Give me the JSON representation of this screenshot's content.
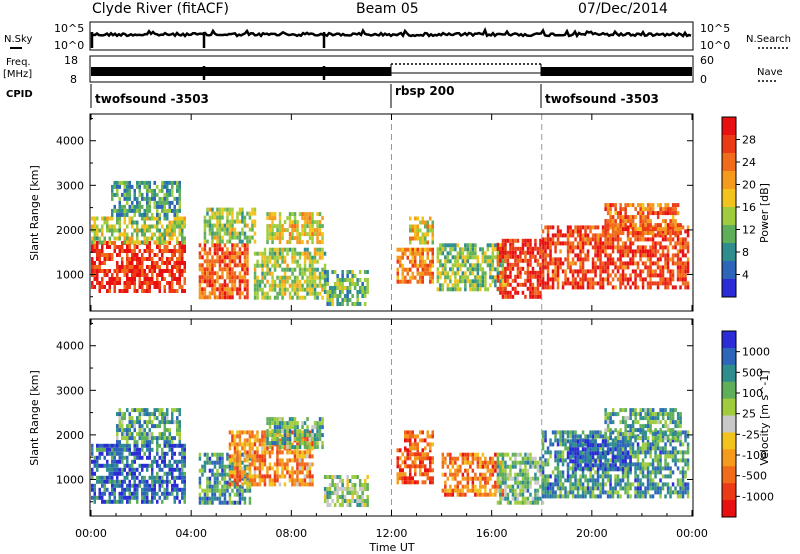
{
  "header": {
    "station": "Clyde River (fitACF)",
    "beam": "Beam 05",
    "date": "07/Dec/2014"
  },
  "top_panel": {
    "nsky_label": "N.Sky",
    "nsearch_label": "N.Search",
    "freq_label": "Freq.",
    "freq_unit": "[MHz]",
    "nave_label": "Nave",
    "cpid_label": "CPID",
    "left_ticks_noise": [
      "10^5",
      "10^0"
    ],
    "right_ticks_noise": [
      "10^5",
      "10^0"
    ],
    "left_ticks_freq": [
      "18",
      "8"
    ],
    "right_ticks_freq": [
      "60",
      "0"
    ]
  },
  "cpid_segments": [
    {
      "start": 0,
      "end": 12,
      "label": "twofsound -3503"
    },
    {
      "start": 12,
      "end": 18,
      "label": "rbsp 200"
    },
    {
      "start": 18,
      "end": 24,
      "label": "twofsound -3503"
    }
  ],
  "chart_data": [
    {
      "type": "heatmap",
      "quantity": "Power",
      "ylabel": "Slant Range [km]",
      "xlabel": "Time UT",
      "xlim": [
        0,
        24
      ],
      "ylim": [
        180,
        4600
      ],
      "yticks": [
        1000,
        2000,
        3000,
        4000
      ],
      "colorbar_label": "Power [dB]",
      "colorbar_ticks": [
        "28",
        "24",
        "20",
        "16",
        "12",
        "8",
        "4"
      ],
      "colorscale": [
        "#2b2bd8",
        "#2d66b8",
        "#2f8d8d",
        "#5fae5a",
        "#9fcc3c",
        "#f2c31c",
        "#f49a1c",
        "#f06b1a",
        "#ec3a16",
        "#e81010"
      ],
      "scatter_regions": [
        {
          "t0": 0.0,
          "t1": 3.7,
          "r0": 600,
          "r1": 1750,
          "v": 0.88
        },
        {
          "t0": 0.0,
          "t1": 3.7,
          "r0": 1700,
          "r1": 2300,
          "v": 0.45
        },
        {
          "t0": 0.8,
          "t1": 3.5,
          "r0": 2300,
          "r1": 3100,
          "v": 0.3
        },
        {
          "t0": 4.3,
          "t1": 6.2,
          "r0": 500,
          "r1": 1700,
          "v": 0.78
        },
        {
          "t0": 4.5,
          "t1": 6.5,
          "r0": 1700,
          "r1": 2500,
          "v": 0.45
        },
        {
          "t0": 6.5,
          "t1": 9.3,
          "r0": 500,
          "r1": 1600,
          "v": 0.45
        },
        {
          "t0": 7.0,
          "t1": 9.2,
          "r0": 1700,
          "r1": 2400,
          "v": 0.55
        },
        {
          "t0": 9.3,
          "t1": 11.0,
          "r0": 300,
          "r1": 1100,
          "v": 0.35
        },
        {
          "t0": 12.2,
          "t1": 13.6,
          "r0": 800,
          "r1": 1600,
          "v": 0.72
        },
        {
          "t0": 12.7,
          "t1": 13.6,
          "r0": 1700,
          "r1": 2300,
          "v": 0.55
        },
        {
          "t0": 13.8,
          "t1": 16.5,
          "r0": 700,
          "r1": 1700,
          "v": 0.4
        },
        {
          "t0": 16.2,
          "t1": 18.0,
          "r0": 500,
          "r1": 1800,
          "v": 0.9
        },
        {
          "t0": 18.0,
          "t1": 23.8,
          "r0": 700,
          "r1": 2100,
          "v": 0.85
        },
        {
          "t0": 20.5,
          "t1": 23.5,
          "r0": 1900,
          "r1": 2600,
          "v": 0.75
        }
      ]
    },
    {
      "type": "heatmap",
      "quantity": "Velocity",
      "ylabel": "Slant Range [km]",
      "xlabel": "Time UT",
      "xlim": [
        0,
        24
      ],
      "ylim": [
        180,
        4600
      ],
      "yticks": [
        1000,
        2000,
        3000,
        4000
      ],
      "xticks": [
        "00:00",
        "04:00",
        "08:00",
        "12:00",
        "16:00",
        "20:00",
        "00:00"
      ],
      "colorbar_label": "Velocity [m s^-1]",
      "colorbar_ticks": [
        "1000",
        "500",
        "100",
        "25",
        "-25",
        "-100",
        "-500",
        "-1000"
      ],
      "colorscale": [
        "#e81010",
        "#ec3a16",
        "#f06b1a",
        "#f49a1c",
        "#f2c31c",
        "#c8c8c8",
        "#9fcc3c",
        "#5fae5a",
        "#2f8d8d",
        "#2d66b8",
        "#2b2bd8"
      ],
      "scatter_regions": [
        {
          "t0": 0.0,
          "t1": 3.7,
          "r0": 500,
          "r1": 1800,
          "v": 0.85
        },
        {
          "t0": 1.0,
          "t1": 3.5,
          "r0": 1800,
          "r1": 2600,
          "v": 0.7
        },
        {
          "t0": 4.3,
          "t1": 6.3,
          "r0": 500,
          "r1": 1600,
          "v": 0.75
        },
        {
          "t0": 5.5,
          "t1": 8.8,
          "r0": 900,
          "r1": 2100,
          "v": 0.3
        },
        {
          "t0": 7.0,
          "t1": 9.2,
          "r0": 1700,
          "r1": 2400,
          "v": 0.7
        },
        {
          "t0": 9.3,
          "t1": 11.0,
          "r0": 400,
          "r1": 1100,
          "v": 0.6
        },
        {
          "t0": 12.2,
          "t1": 13.6,
          "r0": 900,
          "r1": 1700,
          "v": 0.18
        },
        {
          "t0": 12.5,
          "t1": 13.6,
          "r0": 1700,
          "r1": 2100,
          "v": 0.2
        },
        {
          "t0": 14.0,
          "t1": 16.4,
          "r0": 700,
          "r1": 1600,
          "v": 0.25
        },
        {
          "t0": 16.2,
          "t1": 18.0,
          "r0": 500,
          "r1": 1600,
          "v": 0.65
        },
        {
          "t0": 18.0,
          "t1": 23.8,
          "r0": 600,
          "r1": 2100,
          "v": 0.75
        },
        {
          "t0": 19.0,
          "t1": 21.5,
          "r0": 1200,
          "r1": 1900,
          "v": 0.9
        },
        {
          "t0": 20.5,
          "t1": 23.5,
          "r0": 1900,
          "r1": 2600,
          "v": 0.7
        }
      ]
    }
  ]
}
